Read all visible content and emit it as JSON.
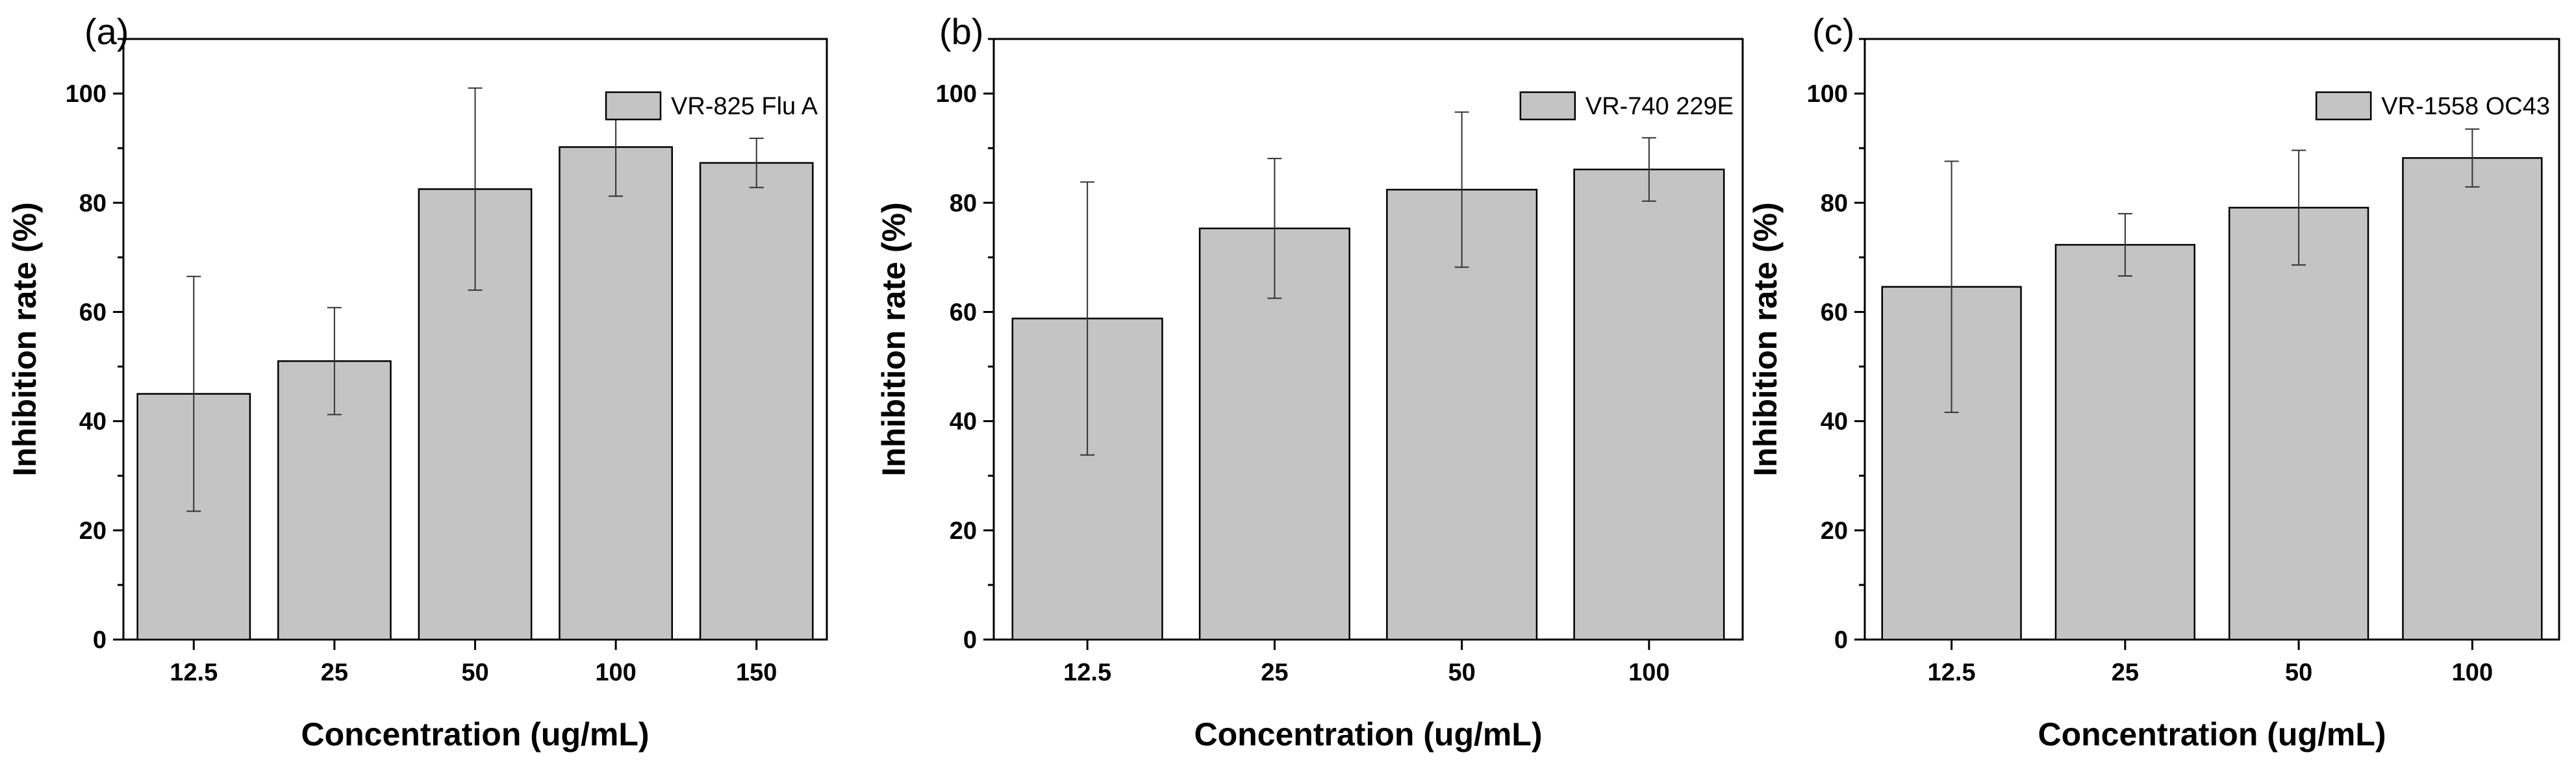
{
  "chart_data": [
    {
      "type": "bar",
      "panel_label": "(a)",
      "categories": [
        "12.5",
        "25",
        "50",
        "100",
        "150"
      ],
      "series": [
        {
          "name": "VR-825 Flu A",
          "values": [
            45.0,
            51.0,
            82.5,
            90.2,
            87.3
          ],
          "errors": [
            21.5,
            9.8,
            18.5,
            9.0,
            4.5
          ]
        }
      ],
      "xlabel": "Concentration (ug/mL)",
      "ylabel": "Inhibition rate (%)",
      "ylim": [
        0,
        110
      ],
      "yticks": [
        0,
        20,
        40,
        60,
        80,
        100
      ],
      "legend_position": "top-right",
      "bar_color": "#c4c4c4",
      "grid": false
    },
    {
      "type": "bar",
      "panel_label": "(b)",
      "categories": [
        "12.5",
        "25",
        "50",
        "100"
      ],
      "series": [
        {
          "name": "VR-740 229E",
          "values": [
            58.8,
            75.3,
            82.4,
            86.1
          ],
          "errors": [
            25.0,
            12.8,
            14.2,
            5.8
          ]
        }
      ],
      "xlabel": "Concentration (ug/mL)",
      "ylabel": "Inhibition rate (%)",
      "ylim": [
        0,
        110
      ],
      "yticks": [
        0,
        20,
        40,
        60,
        80,
        100
      ],
      "legend_position": "top-right",
      "bar_color": "#c4c4c4",
      "grid": false
    },
    {
      "type": "bar",
      "panel_label": "(c)",
      "categories": [
        "12.5",
        "25",
        "50",
        "100"
      ],
      "series": [
        {
          "name": "VR-1558 OC43",
          "values": [
            64.6,
            72.3,
            79.1,
            88.2
          ],
          "errors": [
            23.0,
            5.7,
            10.5,
            5.3
          ]
        }
      ],
      "xlabel": "Concentration (ug/mL)",
      "ylabel": "Inhibition rate (%)",
      "ylim": [
        0,
        110
      ],
      "yticks": [
        0,
        20,
        40,
        60,
        80,
        100
      ],
      "legend_position": "top-right",
      "bar_color": "#c4c4c4",
      "grid": false
    }
  ]
}
